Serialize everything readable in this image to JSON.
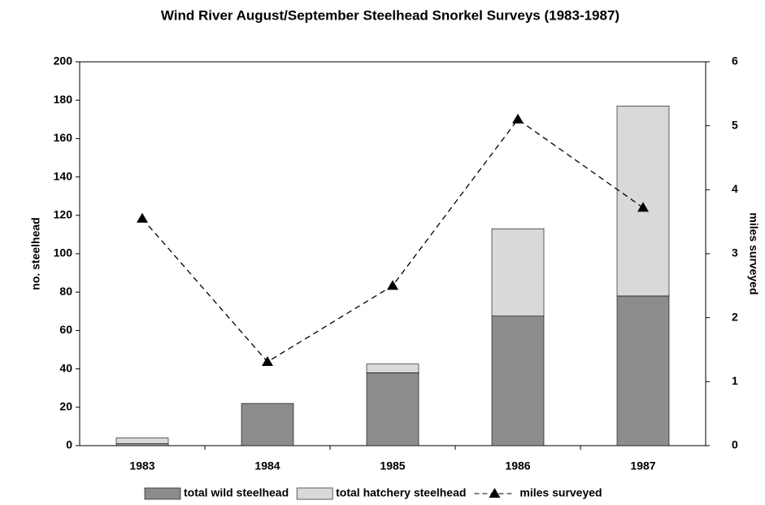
{
  "chart_data": {
    "type": "bar",
    "stacked": true,
    "title": "Wind River August/September Steelhead Snorkel Surveys (1983-1987)",
    "y_label": "no. steelhead",
    "y2_label": "miles surveyed",
    "categories": [
      "1983",
      "1984",
      "1985",
      "1986",
      "1987"
    ],
    "series": [
      {
        "name": "total wild steelhead",
        "type": "bar",
        "color": "#8c8c8c",
        "values": [
          1,
          22,
          38,
          67.5,
          78
        ]
      },
      {
        "name": "total hatchery steelhead",
        "type": "bar",
        "color": "#d9d9d9",
        "values": [
          3,
          0,
          4.5,
          45.5,
          99
        ]
      },
      {
        "name": "miles surveyed",
        "type": "line",
        "axis": "y2",
        "color": "#000000",
        "dashed": true,
        "marker": "triangle",
        "values": [
          3.55,
          1.31,
          2.5,
          5.1,
          3.72
        ]
      }
    ],
    "ylim": [
      0,
      200
    ],
    "yticks": [
      0,
      20,
      40,
      60,
      80,
      100,
      120,
      140,
      160,
      180,
      200
    ],
    "y2lim": [
      0,
      6
    ],
    "y2ticks": [
      0,
      1,
      2,
      3,
      4,
      5,
      6
    ],
    "grid": false,
    "legend": "bottom"
  }
}
